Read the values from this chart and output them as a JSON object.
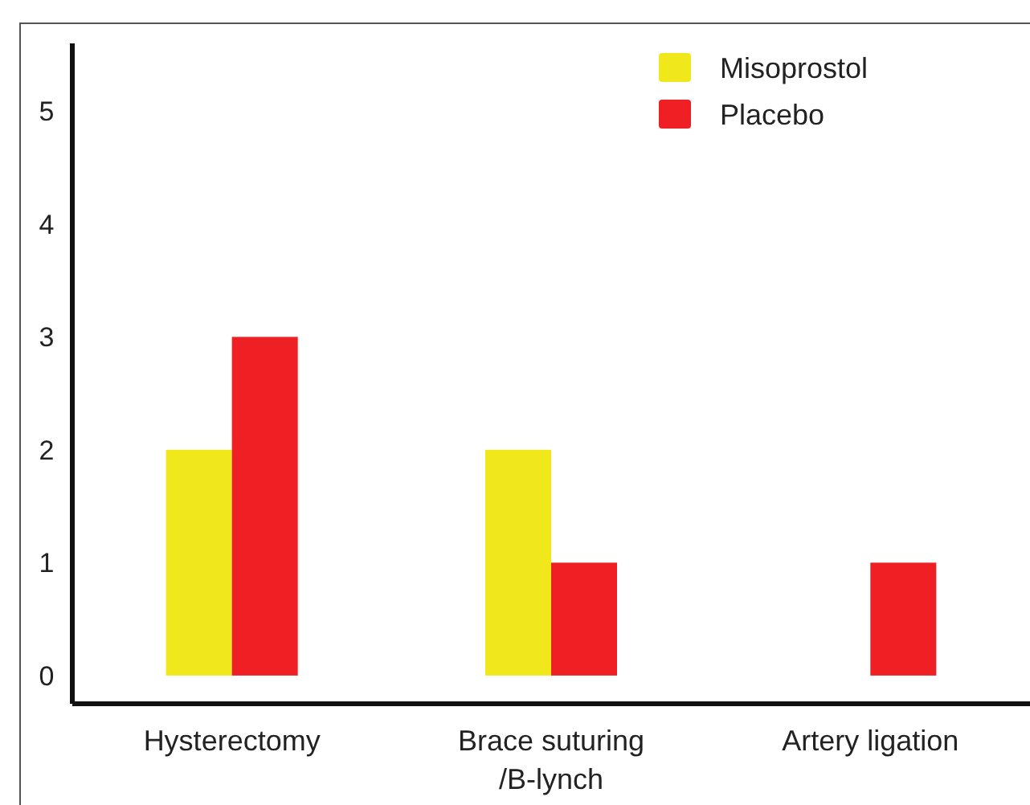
{
  "chart_data": {
    "type": "bar",
    "categories": [
      "Hysterectomy",
      "Brace suturing\n/B-lynch",
      "Artery ligation"
    ],
    "series": [
      {
        "name": "Misoprostol",
        "color": "#f0e81a",
        "values": [
          2,
          2,
          0
        ]
      },
      {
        "name": "Placebo",
        "color": "#ee2024",
        "values": [
          3,
          1,
          1
        ]
      }
    ],
    "ylim": [
      -0.25,
      5.6
    ],
    "yticks": [
      0,
      1,
      2,
      3,
      4,
      5
    ],
    "grid": false,
    "legend": "top right"
  }
}
